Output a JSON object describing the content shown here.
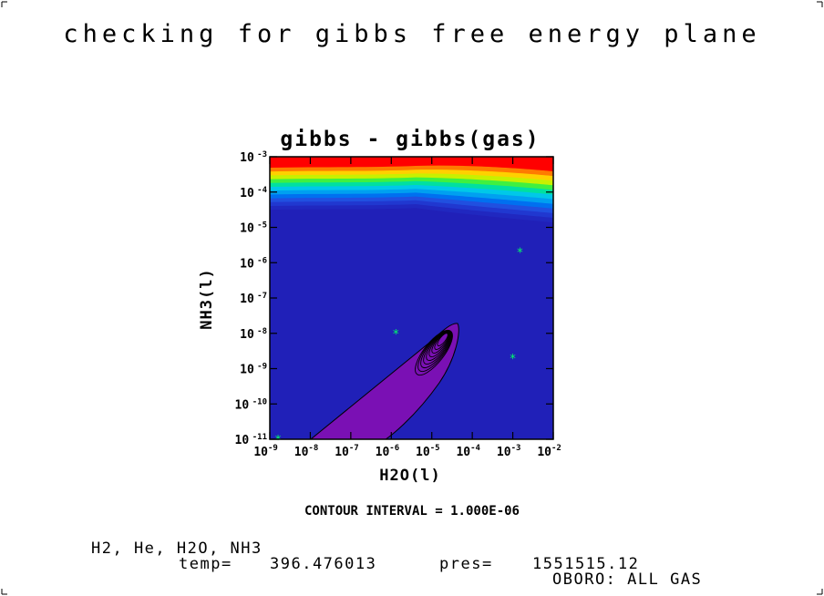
{
  "page": {
    "title": "checking for gibbs free energy plane",
    "contour_interval_text": "CONTOUR INTERVAL = 1.000E-06",
    "species_line": "H2, He, H2O, NH3",
    "temp_label": "temp=",
    "temp_value": "396.476013",
    "pres_label": "pres=",
    "pres_value": "1551515.12",
    "status_line": "OBORO: ALL GAS"
  },
  "colors": {
    "background_fill": "#2020b8",
    "purple_region": "#7a10b4",
    "marker": "#00ff66",
    "top_band": [
      "#ff0000",
      "#ff7a00",
      "#ffd000",
      "#c8f000",
      "#40f040",
      "#00e0a0",
      "#00c8e8",
      "#00a0f0",
      "#0070f0",
      "#2050e0",
      "#2038d0",
      "#2028c0"
    ]
  },
  "chart_data": {
    "type": "heatmap",
    "title": "gibbs - gibbs(gas)",
    "xlabel": "H2O(l)",
    "ylabel": "NH3(l)",
    "xscale": "log",
    "yscale": "log",
    "xlim": [
      1e-09,
      0.01
    ],
    "ylim": [
      1e-11,
      0.001
    ],
    "x_ticks": [
      {
        "base": "10",
        "exp": "-9"
      },
      {
        "base": "10",
        "exp": "-8"
      },
      {
        "base": "10",
        "exp": "-7"
      },
      {
        "base": "10",
        "exp": "-6"
      },
      {
        "base": "10",
        "exp": "-5"
      },
      {
        "base": "10",
        "exp": "-4"
      },
      {
        "base": "10",
        "exp": "-3"
      },
      {
        "base": "10",
        "exp": "-2"
      }
    ],
    "y_ticks": [
      {
        "base": "10",
        "exp": "-11"
      },
      {
        "base": "10",
        "exp": "-10"
      },
      {
        "base": "10",
        "exp": "-9"
      },
      {
        "base": "10",
        "exp": "-8"
      },
      {
        "base": "10",
        "exp": "-7"
      },
      {
        "base": "10",
        "exp": "-6"
      },
      {
        "base": "10",
        "exp": "-5"
      },
      {
        "base": "10",
        "exp": "-4"
      },
      {
        "base": "10",
        "exp": "-3"
      }
    ],
    "markers": [
      {
        "x": 1.6e-09,
        "y": 1e-11
      },
      {
        "x": 1.3e-06,
        "y": 1e-08
      },
      {
        "x": 0.0015,
        "y": 2e-06
      },
      {
        "x": 0.001,
        "y": 2e-09
      }
    ],
    "region_label": "purple region: negative gibbs difference"
  }
}
